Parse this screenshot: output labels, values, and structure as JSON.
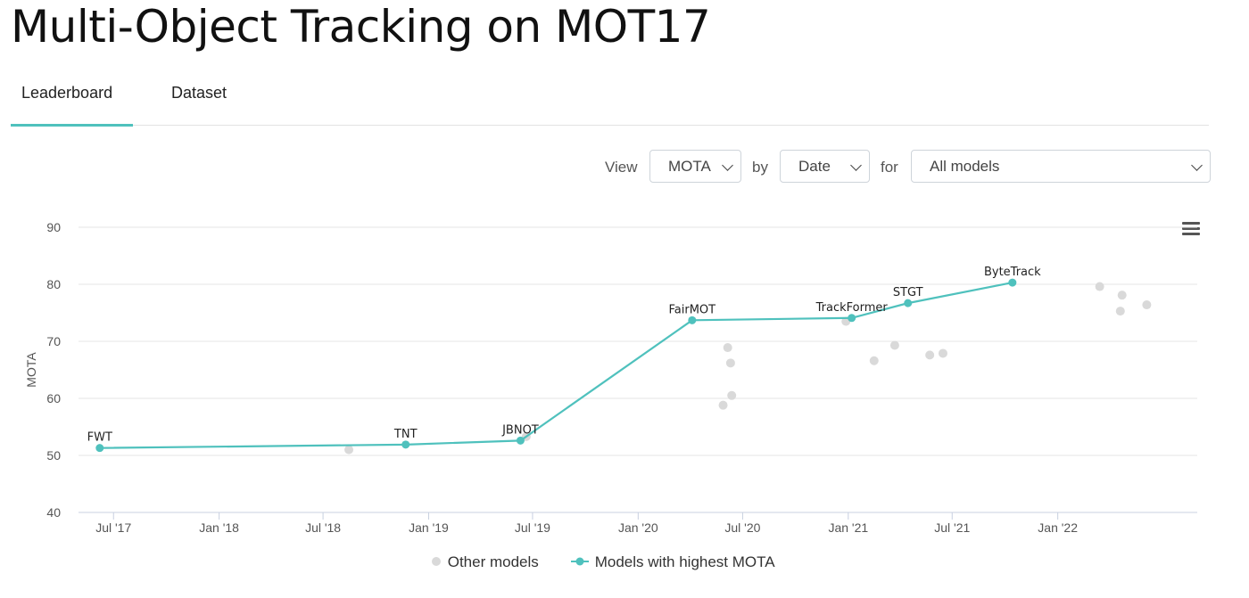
{
  "page": {
    "title": "Multi-Object Tracking on MOT17"
  },
  "tabs": [
    {
      "label": "Leaderboard",
      "active": true
    },
    {
      "label": "Dataset",
      "active": false
    }
  ],
  "controls": {
    "view_label": "View",
    "metric": "MOTA",
    "by_label": "by",
    "axis": "Date",
    "for_label": "for",
    "filter": "All models"
  },
  "colors": {
    "accent": "#4fc1bd",
    "other": "#d9d9d9"
  },
  "chart_data": {
    "type": "scatter",
    "ylabel": "MOTA",
    "xlabel": "",
    "ylim": [
      40,
      90
    ],
    "yticks": [
      "40",
      "50",
      "60",
      "70",
      "80",
      "90"
    ],
    "xticks": [
      {
        "date": "2017-07-01",
        "label": "Jul '17"
      },
      {
        "date": "2018-01-01",
        "label": "Jan '18"
      },
      {
        "date": "2018-07-01",
        "label": "Jul '18"
      },
      {
        "date": "2019-01-01",
        "label": "Jan '19"
      },
      {
        "date": "2019-07-01",
        "label": "Jul '19"
      },
      {
        "date": "2020-01-01",
        "label": "Jan '20"
      },
      {
        "date": "2020-07-01",
        "label": "Jul '20"
      },
      {
        "date": "2021-01-01",
        "label": "Jan '21"
      },
      {
        "date": "2021-07-01",
        "label": "Jul '21"
      },
      {
        "date": "2022-01-01",
        "label": "Jan '22"
      }
    ],
    "xlim": [
      "2017-05-01",
      "2022-09-01"
    ],
    "grid": true,
    "legend_position": "bottom",
    "series": [
      {
        "name": "Models with highest MOTA",
        "style": "line+markers",
        "points": [
          {
            "date": "2017-06-07",
            "value": 51.3,
            "label": "FWT"
          },
          {
            "date": "2018-11-22",
            "value": 51.9,
            "label": "TNT"
          },
          {
            "date": "2019-06-10",
            "value": 52.6,
            "label": "JBNOT"
          },
          {
            "date": "2020-04-04",
            "value": 73.7,
            "label": "FairMOT"
          },
          {
            "date": "2021-01-07",
            "value": 74.1,
            "label": "TrackFormer"
          },
          {
            "date": "2021-04-15",
            "value": 76.7,
            "label": "STGT"
          },
          {
            "date": "2021-10-14",
            "value": 80.3,
            "label": "ByteTrack"
          }
        ]
      },
      {
        "name": "Other models",
        "style": "markers",
        "points": [
          {
            "date": "2018-08-15",
            "value": 51.0
          },
          {
            "date": "2019-06-20",
            "value": 53.3
          },
          {
            "date": "2020-05-28",
            "value": 58.8
          },
          {
            "date": "2020-06-05",
            "value": 68.9
          },
          {
            "date": "2020-06-10",
            "value": 66.2
          },
          {
            "date": "2020-06-12",
            "value": 60.5
          },
          {
            "date": "2020-12-28",
            "value": 73.5
          },
          {
            "date": "2021-02-15",
            "value": 66.6
          },
          {
            "date": "2021-03-23",
            "value": 69.3
          },
          {
            "date": "2021-05-23",
            "value": 67.6
          },
          {
            "date": "2021-06-15",
            "value": 67.9
          },
          {
            "date": "2022-03-15",
            "value": 79.6
          },
          {
            "date": "2022-04-20",
            "value": 75.3
          },
          {
            "date": "2022-04-23",
            "value": 78.1
          },
          {
            "date": "2022-06-05",
            "value": 76.4
          }
        ]
      }
    ]
  }
}
